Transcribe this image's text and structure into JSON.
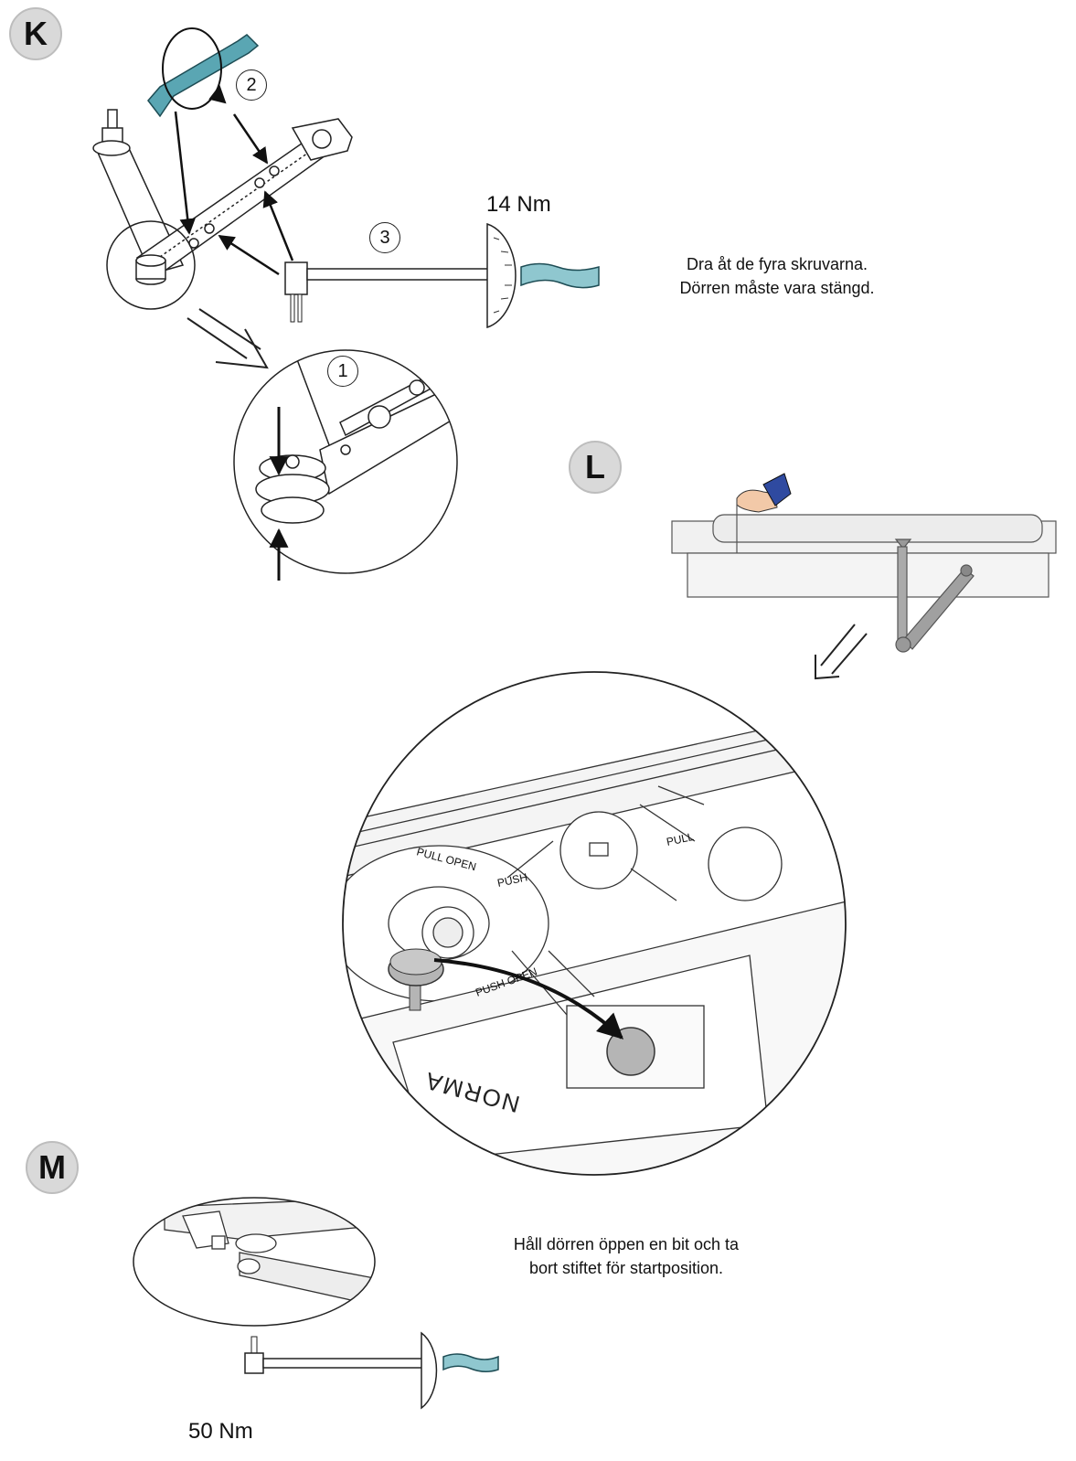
{
  "sections": {
    "k": {
      "badge": "K",
      "step_1": "1",
      "step_2": "2",
      "step_3": "3",
      "torque": "14 Nm",
      "caption_line1": "Dra åt de fyra skruvarna.",
      "caption_line2": "Dörren måste vara stängd."
    },
    "l": {
      "badge": "L",
      "stamp_pull_open": "PULL OPEN",
      "stamp_push": "PUSH",
      "stamp_pull": "PULL",
      "stamp_push_open": "PUSH OPEN",
      "brand": "NORMA"
    },
    "m": {
      "badge": "M",
      "torque": "50 Nm",
      "caption_line1": "Håll dörren öppen en bit och ta",
      "caption_line2": "bort stiftet för startposition."
    }
  },
  "colors": {
    "badge_fill": "#d9d9d9",
    "wrench_teal": "#8fc7cf",
    "hex_key_teal": "#5aa6b3",
    "pin_gray": "#b5b5b5",
    "sleeve_blue": "#2f4aa0"
  },
  "icons": [
    "hex-key-icon",
    "rotate-arrow-icon",
    "torque-wrench-icon",
    "hand-icon",
    "direction-arrow-icon"
  ]
}
